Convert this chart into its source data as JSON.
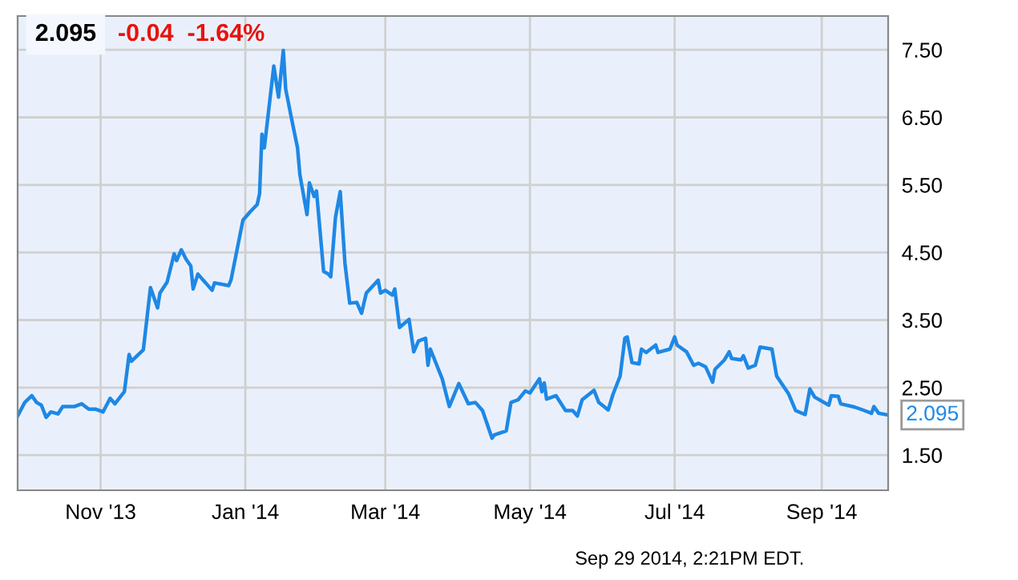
{
  "chart_data": {
    "type": "line",
    "title": "2.095",
    "subtitle": "-0.04  -1.64%",
    "annotations": [
      {
        "text": "2.095",
        "x": "2014-09-29",
        "y": 2.095
      },
      "Sep 29 2014, 2:21PM EDT."
    ],
    "series": [
      {
        "color": "#1e88e5",
        "x": [
          "2013-09-27",
          "2013-09-30",
          "2013-10-03",
          "2013-10-05",
          "2013-10-07",
          "2013-10-09",
          "2013-10-11",
          "2013-10-14",
          "2013-10-16",
          "2013-10-21",
          "2013-10-24",
          "2013-10-27",
          "2013-10-30",
          "2013-11-02",
          "2013-11-05",
          "2013-11-07",
          "2013-11-11",
          "2013-11-13",
          "2013-11-14",
          "2013-11-19",
          "2013-11-22",
          "2013-11-25",
          "2013-11-26",
          "2013-11-29",
          "2013-12-02",
          "2013-12-03",
          "2013-12-05",
          "2013-12-07",
          "2013-12-09",
          "2013-12-10",
          "2013-12-12",
          "2013-12-16",
          "2013-12-18",
          "2013-12-19",
          "2013-12-25",
          "2013-12-26",
          "2013-12-31",
          "2014-01-03",
          "2014-01-06",
          "2014-01-07",
          "2014-01-08",
          "2014-01-09",
          "2014-01-13",
          "2014-01-15",
          "2014-01-17",
          "2014-01-18",
          "2014-01-21",
          "2014-01-23",
          "2014-01-24",
          "2014-01-27",
          "2014-01-28",
          "2014-01-30",
          "2014-01-31",
          "2014-02-03",
          "2014-02-05",
          "2014-02-06",
          "2014-02-08",
          "2014-02-10",
          "2014-02-12",
          "2014-02-14",
          "2014-02-17",
          "2014-02-19",
          "2014-02-21",
          "2014-02-26",
          "2014-02-27",
          "2014-03-01",
          "2014-03-04",
          "2014-03-05",
          "2014-03-07",
          "2014-03-11",
          "2014-03-13",
          "2014-03-15",
          "2014-03-18",
          "2014-03-19",
          "2014-03-20",
          "2014-03-25",
          "2014-03-28",
          "2014-04-01",
          "2014-04-05",
          "2014-04-08",
          "2014-04-11",
          "2014-04-15",
          "2014-04-16",
          "2014-04-21",
          "2014-04-23",
          "2014-04-26",
          "2014-04-29",
          "2014-05-01",
          "2014-05-05",
          "2014-05-06",
          "2014-05-07",
          "2014-05-08",
          "2014-05-12",
          "2014-05-16",
          "2014-05-19",
          "2014-05-21",
          "2014-05-23",
          "2014-05-28",
          "2014-05-30",
          "2014-06-03",
          "2014-06-05",
          "2014-06-08",
          "2014-06-10",
          "2014-06-11",
          "2014-06-13",
          "2014-06-16",
          "2014-06-17",
          "2014-06-19",
          "2014-06-23",
          "2014-06-24",
          "2014-06-29",
          "2014-07-01",
          "2014-07-02",
          "2014-07-06",
          "2014-07-09",
          "2014-07-11",
          "2014-07-14",
          "2014-07-17",
          "2014-07-18",
          "2014-07-22",
          "2014-07-24",
          "2014-07-25",
          "2014-07-29",
          "2014-07-30",
          "2014-08-01",
          "2014-08-04",
          "2014-08-06",
          "2014-08-11",
          "2014-08-13",
          "2014-08-18",
          "2014-08-21",
          "2014-08-25",
          "2014-08-27",
          "2014-08-29",
          "2014-09-04",
          "2014-09-05",
          "2014-09-08",
          "2014-09-09",
          "2014-09-15",
          "2014-09-19",
          "2014-09-22",
          "2014-09-23",
          "2014-09-25",
          "2014-09-29"
        ],
        "values": [
          2.08,
          2.28,
          2.38,
          2.28,
          2.24,
          2.06,
          2.14,
          2.11,
          2.22,
          2.22,
          2.26,
          2.18,
          2.18,
          2.14,
          2.34,
          2.26,
          2.44,
          2.99,
          2.89,
          3.06,
          3.98,
          3.68,
          3.9,
          4.06,
          4.48,
          4.38,
          4.54,
          4.4,
          4.3,
          3.96,
          4.18,
          4.02,
          3.94,
          4.05,
          4.01,
          4.1,
          4.98,
          5.1,
          5.21,
          5.37,
          6.25,
          6.05,
          7.26,
          6.8,
          7.49,
          6.92,
          6.39,
          6.05,
          5.65,
          5.06,
          5.53,
          5.33,
          5.41,
          4.22,
          4.18,
          4.14,
          5.02,
          5.4,
          4.34,
          3.75,
          3.76,
          3.6,
          3.9,
          4.09,
          3.9,
          3.94,
          3.87,
          3.96,
          3.39,
          3.51,
          3.03,
          3.19,
          3.23,
          2.83,
          3.07,
          2.63,
          2.22,
          2.56,
          2.26,
          2.28,
          2.16,
          1.75,
          1.8,
          1.86,
          2.28,
          2.32,
          2.45,
          2.42,
          2.63,
          2.44,
          2.57,
          2.33,
          2.38,
          2.16,
          2.16,
          2.08,
          2.32,
          2.46,
          2.28,
          2.17,
          2.4,
          2.67,
          3.23,
          3.25,
          2.87,
          2.85,
          3.07,
          3.02,
          3.13,
          3.02,
          3.07,
          3.25,
          3.13,
          3.03,
          2.83,
          2.86,
          2.81,
          2.58,
          2.77,
          2.91,
          3.03,
          2.93,
          2.91,
          2.97,
          2.79,
          2.83,
          3.1,
          3.07,
          2.67,
          2.41,
          2.16,
          2.1,
          2.48,
          2.36,
          2.24,
          2.38,
          2.37,
          2.26,
          2.21,
          2.16,
          2.12,
          2.22,
          2.12,
          2.095
        ]
      }
    ],
    "xlim": [
      "2013-09-27",
      "2014-09-29"
    ],
    "xticks": [
      {
        "value": "2013-11-01",
        "label": "Nov '13"
      },
      {
        "value": "2014-01-01",
        "label": "Jan '14"
      },
      {
        "value": "2014-03-01",
        "label": "Mar '14"
      },
      {
        "value": "2014-05-01",
        "label": "May '14"
      },
      {
        "value": "2014-07-01",
        "label": "Jul '14"
      },
      {
        "value": "2014-09-01",
        "label": "Sep '14"
      }
    ],
    "ylim": [
      0.98,
      8.0
    ],
    "yticks": [
      {
        "value": 1.5,
        "label": "1.50"
      },
      {
        "value": 2.5,
        "label": "2.50"
      },
      {
        "value": 3.5,
        "label": "3.50"
      },
      {
        "value": 4.5,
        "label": "4.50"
      },
      {
        "value": 5.5,
        "label": "5.50"
      },
      {
        "value": 6.5,
        "label": "6.50"
      },
      {
        "value": 7.5,
        "label": "7.50"
      }
    ],
    "grid": true,
    "legend": false,
    "marker": "none",
    "line_style": "solid"
  }
}
